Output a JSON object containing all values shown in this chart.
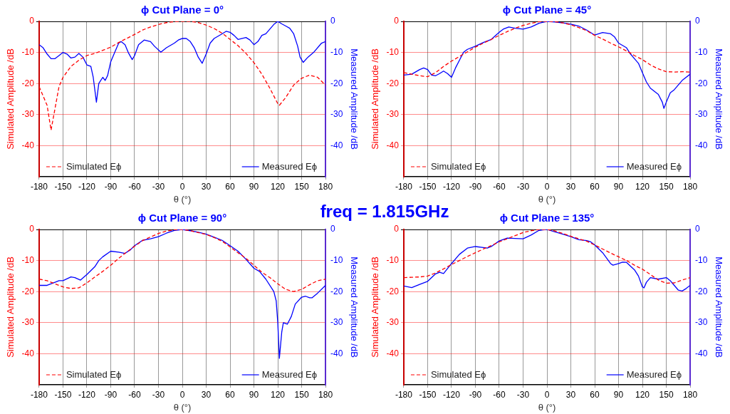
{
  "chart_data": [
    {
      "type": "line",
      "title": "ϕ Cut Plane = 0°",
      "xlabel": "θ (°)",
      "ylabel": "Simulated Amplitude /dB",
      "y2label": "Measured Amplitude /dB",
      "annotations": [
        "freq = 1.815GHz"
      ],
      "xlim": [
        -180,
        180
      ],
      "xticks": [
        -180,
        -150,
        -120,
        -90,
        -60,
        -30,
        0,
        30,
        60,
        90,
        120,
        150,
        180
      ],
      "ylim": [
        -50,
        0
      ],
      "yticks": [
        -40,
        -30,
        -20,
        -10,
        0
      ],
      "y2lim": [
        -50,
        0
      ],
      "y2ticks": [
        -40,
        -30,
        -20,
        -10,
        0
      ],
      "grid": true,
      "legend": "bottom",
      "marker": "none",
      "series": [
        {
          "name": "Simulated Eϕ",
          "color": "#ff0000",
          "line_style": "dashed",
          "x": [
            -180,
            -170,
            -165,
            -160,
            -155,
            -150,
            -140,
            -130,
            -120,
            -110,
            -100,
            -90,
            -80,
            -70,
            -60,
            -50,
            -40,
            -30,
            -20,
            -10,
            0,
            10,
            20,
            30,
            40,
            50,
            60,
            70,
            80,
            90,
            100,
            110,
            120,
            122,
            130,
            140,
            150,
            160,
            170,
            180
          ],
          "values": [
            -21,
            -27,
            -35,
            -28,
            -21,
            -18,
            -14.5,
            -12.5,
            -11,
            -10.3,
            -9.3,
            -8.3,
            -6.8,
            -5.5,
            -4.2,
            -2.8,
            -1.8,
            -1,
            -0.4,
            -0.1,
            0,
            0,
            -0.4,
            -1.2,
            -2.3,
            -3.8,
            -5.8,
            -7.8,
            -10.3,
            -13.3,
            -17,
            -21.5,
            -26.5,
            -27,
            -24.5,
            -20.5,
            -18.3,
            -17.3,
            -18,
            -20.5
          ]
        },
        {
          "name": "Measured Eϕ",
          "color": "#0000ff",
          "line_style": "solid",
          "axis": "y2",
          "x": [
            -180,
            -175,
            -170,
            -165,
            -160,
            -155,
            -150,
            -145,
            -140,
            -135,
            -130,
            -125,
            -120,
            -115,
            -112,
            -108,
            -105,
            -100,
            -97,
            -94,
            -90,
            -85,
            -80,
            -77,
            -72,
            -68,
            -63,
            -60,
            -55,
            -48,
            -40,
            -35,
            -27,
            -20,
            -10,
            -5,
            0,
            5,
            10,
            15,
            20,
            25,
            30,
            35,
            40,
            50,
            55,
            60,
            65,
            70,
            80,
            85,
            90,
            95,
            100,
            105,
            110,
            115,
            120,
            125,
            130,
            135,
            140,
            145,
            148,
            152,
            158,
            165,
            175,
            180
          ],
          "values": [
            -7.5,
            -8.5,
            -10.5,
            -12,
            -12,
            -11,
            -10,
            -10.5,
            -11.8,
            -11.5,
            -10.3,
            -11.5,
            -14,
            -14.5,
            -18,
            -26,
            -20,
            -18,
            -19,
            -17.5,
            -13,
            -10,
            -7,
            -6.5,
            -7.5,
            -10,
            -12.3,
            -11,
            -7.5,
            -6,
            -6.5,
            -8,
            -9.9,
            -8.5,
            -7,
            -6,
            -5.5,
            -5.5,
            -6.5,
            -8.5,
            -11.5,
            -13.5,
            -10.5,
            -7,
            -5.5,
            -4,
            -3.2,
            -3.5,
            -4.5,
            -5.8,
            -5.2,
            -6,
            -7.5,
            -6.5,
            -4.5,
            -4,
            -2.5,
            -1,
            0,
            -0.8,
            -1.5,
            -2.2,
            -4,
            -8,
            -11.5,
            -13.2,
            -11.5,
            -10,
            -7,
            -6.5
          ]
        }
      ]
    },
    {
      "type": "line",
      "title": "ϕ Cut Plane = 45°",
      "xlabel": "θ (°)",
      "ylabel": "Simulated Amplitude /dB",
      "y2label": "Measured Amplitude /dB",
      "xlim": [
        -180,
        180
      ],
      "xticks": [
        -180,
        -150,
        -120,
        -90,
        -60,
        -30,
        0,
        30,
        60,
        90,
        120,
        150,
        180
      ],
      "ylim": [
        -50,
        0
      ],
      "yticks": [
        -40,
        -30,
        -20,
        -10,
        0
      ],
      "y2lim": [
        -50,
        0
      ],
      "y2ticks": [
        -40,
        -30,
        -20,
        -10,
        0
      ],
      "grid": true,
      "legend": "bottom",
      "marker": "none",
      "series": [
        {
          "name": "Simulated Eϕ",
          "color": "#ff0000",
          "line_style": "dashed",
          "x": [
            -180,
            -170,
            -160,
            -150,
            -140,
            -130,
            -120,
            -110,
            -100,
            -90,
            -80,
            -70,
            -60,
            -50,
            -40,
            -30,
            -20,
            -10,
            0,
            10,
            20,
            30,
            40,
            50,
            60,
            70,
            80,
            90,
            100,
            110,
            120,
            130,
            140,
            150,
            160,
            170,
            180
          ],
          "values": [
            -16.5,
            -17,
            -17.5,
            -17.8,
            -16.5,
            -14.5,
            -12.8,
            -11.3,
            -9.8,
            -8.3,
            -7,
            -5.8,
            -4.5,
            -3.3,
            -2.2,
            -1.3,
            -0.6,
            -0.1,
            0,
            -0.1,
            -0.5,
            -1.1,
            -2,
            -3,
            -4.5,
            -5.7,
            -7,
            -8.2,
            -9.5,
            -11,
            -12.3,
            -14,
            -15.3,
            -16.2,
            -16.3,
            -16.2,
            -16.3
          ]
        },
        {
          "name": "Measured Eϕ",
          "color": "#0000ff",
          "line_style": "solid",
          "axis": "y2",
          "x": [
            -180,
            -170,
            -160,
            -155,
            -150,
            -145,
            -140,
            -135,
            -130,
            -125,
            -120,
            -115,
            -110,
            -105,
            -100,
            -90,
            -80,
            -70,
            -60,
            -55,
            -48,
            -40,
            -30,
            -20,
            -10,
            0,
            10,
            20,
            30,
            40,
            50,
            60,
            65,
            70,
            80,
            85,
            90,
            100,
            105,
            110,
            115,
            120,
            125,
            130,
            140,
            145,
            147,
            150,
            155,
            160,
            170,
            180
          ],
          "values": [
            -17.3,
            -17,
            -15.5,
            -15,
            -15.5,
            -17.3,
            -17.5,
            -16.8,
            -16,
            -16.8,
            -18,
            -15,
            -12.5,
            -10,
            -9,
            -8,
            -6.8,
            -5.8,
            -3.5,
            -2.5,
            -1.8,
            -2.2,
            -2.5,
            -1.8,
            -0.6,
            0,
            -0.2,
            -0.5,
            -0.9,
            -1.5,
            -2.8,
            -4.4,
            -4,
            -3.6,
            -4,
            -5,
            -7,
            -8.5,
            -10.5,
            -12,
            -13.5,
            -16.5,
            -19.5,
            -21.5,
            -23.5,
            -26,
            -28,
            -26,
            -23,
            -22,
            -19,
            -17
          ]
        }
      ]
    },
    {
      "type": "line",
      "title": "ϕ Cut Plane = 90°",
      "xlabel": "θ (°)",
      "ylabel": "Simulated Amplitude /dB",
      "y2label": "Measured Amplitude /dB",
      "xlim": [
        -180,
        180
      ],
      "xticks": [
        -180,
        -150,
        -120,
        -90,
        -60,
        -30,
        0,
        30,
        60,
        90,
        120,
        150,
        180
      ],
      "ylim": [
        -50,
        0
      ],
      "yticks": [
        -40,
        -30,
        -20,
        -10,
        0
      ],
      "y2lim": [
        -50,
        0
      ],
      "y2ticks": [
        -40,
        -30,
        -20,
        -10,
        0
      ],
      "grid": true,
      "legend": "bottom",
      "marker": "none",
      "series": [
        {
          "name": "Simulated Eϕ",
          "color": "#ff0000",
          "line_style": "dashed",
          "x": [
            -180,
            -170,
            -160,
            -150,
            -140,
            -130,
            -120,
            -110,
            -100,
            -90,
            -80,
            -70,
            -60,
            -50,
            -40,
            -30,
            -20,
            -10,
            0,
            10,
            20,
            30,
            40,
            50,
            60,
            70,
            80,
            90,
            100,
            110,
            120,
            130,
            140,
            150,
            160,
            170,
            180
          ],
          "values": [
            -16,
            -16.5,
            -17.5,
            -18.5,
            -19,
            -18.8,
            -17.2,
            -15.3,
            -13.5,
            -11.5,
            -9.3,
            -7.3,
            -5.4,
            -3.6,
            -2.4,
            -1.3,
            -0.5,
            -0.1,
            0,
            -0.4,
            -1,
            -1.6,
            -2.6,
            -3.8,
            -5.6,
            -7.5,
            -9.3,
            -11.5,
            -13.8,
            -15.5,
            -17.5,
            -19.3,
            -20,
            -19.3,
            -17.8,
            -16.5,
            -16
          ]
        },
        {
          "name": "Measured Eϕ",
          "color": "#0000ff",
          "line_style": "solid",
          "axis": "y2",
          "x": [
            -180,
            -170,
            -160,
            -155,
            -150,
            -140,
            -135,
            -128,
            -120,
            -110,
            -105,
            -100,
            -90,
            -80,
            -72,
            -65,
            -60,
            -50,
            -40,
            -30,
            -20,
            -10,
            0,
            10,
            20,
            30,
            40,
            50,
            60,
            70,
            80,
            90,
            97,
            105,
            115,
            118,
            120,
            122,
            125,
            127,
            132,
            137,
            142,
            150,
            155,
            160,
            163,
            170,
            180
          ],
          "values": [
            -18,
            -18,
            -17,
            -16.5,
            -16.5,
            -15.3,
            -15.5,
            -16.3,
            -14.5,
            -12,
            -10,
            -8.8,
            -7,
            -7.3,
            -7.7,
            -6.5,
            -5.2,
            -3.5,
            -3,
            -2.3,
            -1.2,
            -0.3,
            0,
            -0.4,
            -0.9,
            -1.5,
            -2.5,
            -3.5,
            -5.2,
            -7,
            -9.6,
            -12.5,
            -13.5,
            -16,
            -20,
            -23,
            -30,
            -41.5,
            -33,
            -30,
            -30.5,
            -28,
            -24,
            -21.8,
            -21.5,
            -22,
            -22,
            -20.5,
            -18
          ]
        }
      ]
    },
    {
      "type": "line",
      "title": "ϕ Cut Plane = 135°",
      "xlabel": "θ (°)",
      "ylabel": "Simulated Amplitude /dB",
      "y2label": "Measured Amplitude /dB",
      "xlim": [
        -180,
        180
      ],
      "xticks": [
        -180,
        -150,
        -120,
        -90,
        -60,
        -30,
        0,
        30,
        60,
        90,
        120,
        150,
        180
      ],
      "ylim": [
        -50,
        0
      ],
      "yticks": [
        -40,
        -30,
        -20,
        -10,
        0
      ],
      "y2lim": [
        -50,
        0
      ],
      "y2ticks": [
        -40,
        -30,
        -20,
        -10,
        0
      ],
      "grid": true,
      "legend": "bottom",
      "marker": "none",
      "series": [
        {
          "name": "Simulated Eϕ",
          "color": "#ff0000",
          "line_style": "dashed",
          "x": [
            -180,
            -170,
            -160,
            -150,
            -140,
            -130,
            -120,
            -110,
            -100,
            -90,
            -80,
            -70,
            -60,
            -50,
            -40,
            -30,
            -20,
            -10,
            0,
            10,
            20,
            30,
            40,
            50,
            60,
            70,
            80,
            90,
            100,
            110,
            120,
            130,
            140,
            150,
            160,
            170,
            180
          ],
          "values": [
            -15.5,
            -15.4,
            -15.3,
            -15,
            -14,
            -12.7,
            -11.3,
            -10,
            -8.7,
            -7.5,
            -6.3,
            -5.2,
            -4,
            -3,
            -2,
            -1,
            -0.4,
            0,
            0,
            -0.5,
            -1.3,
            -2.2,
            -3,
            -3.8,
            -5,
            -6.3,
            -7.6,
            -8.8,
            -10,
            -11.5,
            -12.8,
            -14.5,
            -16.3,
            -17.3,
            -17.2,
            -16.3,
            -15.5
          ]
        },
        {
          "name": "Measured Eϕ",
          "color": "#0000ff",
          "line_style": "solid",
          "axis": "y2",
          "x": [
            -180,
            -170,
            -160,
            -150,
            -140,
            -135,
            -130,
            -120,
            -110,
            -100,
            -90,
            -80,
            -75,
            -70,
            -60,
            -50,
            -40,
            -30,
            -20,
            -10,
            0,
            10,
            20,
            30,
            40,
            50,
            55,
            60,
            70,
            80,
            83,
            90,
            95,
            100,
            110,
            115,
            120,
            122,
            125,
            130,
            140,
            150,
            155,
            160,
            165,
            170,
            175,
            180
          ],
          "values": [
            -18.2,
            -18.7,
            -17.7,
            -16.7,
            -14.3,
            -13.8,
            -14.2,
            -11,
            -8,
            -6,
            -5.5,
            -5.8,
            -6,
            -5.5,
            -3.7,
            -2.8,
            -2.9,
            -3,
            -1.8,
            -0.3,
            0,
            -0.8,
            -1.5,
            -2.3,
            -3.3,
            -3.6,
            -4,
            -5,
            -7.5,
            -11,
            -11.5,
            -11,
            -10.5,
            -10.6,
            -13,
            -15,
            -18.5,
            -18.8,
            -17,
            -15.5,
            -16,
            -15.5,
            -16.5,
            -18,
            -19.5,
            -19.8,
            -19,
            -18
          ]
        }
      ]
    }
  ]
}
